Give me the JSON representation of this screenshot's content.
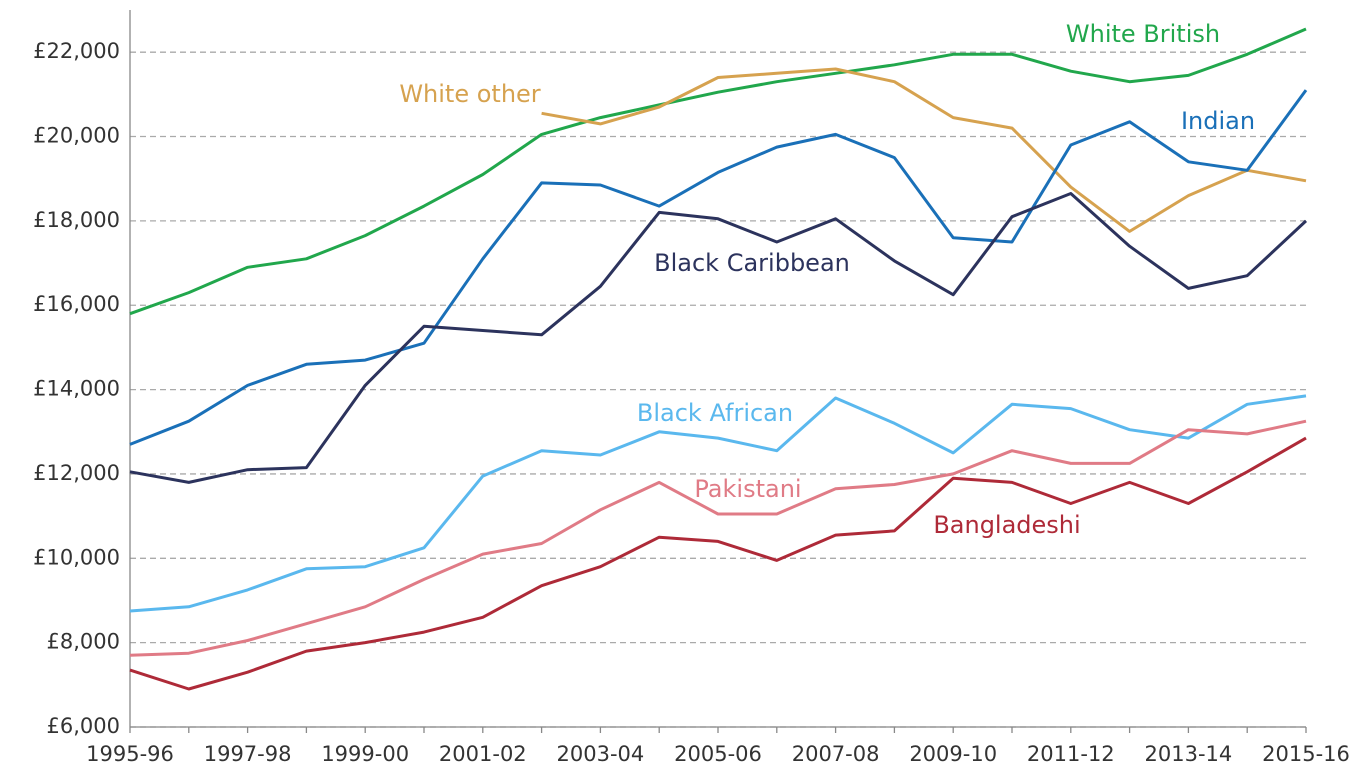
{
  "chart_data": {
    "type": "line",
    "categories": [
      "1995-96",
      null,
      "1997-98",
      null,
      "1999-00",
      null,
      "2001-02",
      null,
      "2003-04",
      null,
      "2005-06",
      null,
      "2007-08",
      null,
      "2009-10",
      null,
      "2011-12",
      null,
      "2013-14",
      null,
      "2015-16"
    ],
    "series": [
      {
        "name": "White British",
        "color": "#21a74c",
        "values": [
          15800,
          16300,
          16900,
          17100,
          17650,
          18350,
          19100,
          20050,
          20450,
          20750,
          21050,
          21300,
          21500,
          21700,
          21950,
          21950,
          21550,
          21300,
          21450,
          21950,
          22550
        ]
      },
      {
        "name": "White other",
        "color": "#d6a24f",
        "values": [
          null,
          null,
          null,
          null,
          null,
          null,
          null,
          20550,
          20300,
          20700,
          21400,
          21500,
          21600,
          21300,
          20450,
          20200,
          18800,
          17750,
          18600,
          19200,
          18950
        ]
      },
      {
        "name": "Indian",
        "color": "#1a70b8",
        "values": [
          12700,
          13250,
          14100,
          14600,
          14700,
          15100,
          17100,
          18900,
          18850,
          18350,
          19150,
          19750,
          20050,
          19500,
          17600,
          17500,
          19800,
          20350,
          19400,
          19200,
          21100
        ]
      },
      {
        "name": "Black Caribbean",
        "color": "#2c335d",
        "values": [
          12050,
          11800,
          12100,
          12150,
          14100,
          15500,
          15400,
          15300,
          16450,
          18200,
          18050,
          17500,
          18050,
          17050,
          16250,
          18100,
          18650,
          17400,
          16400,
          16700,
          18000
        ]
      },
      {
        "name": "Black African",
        "color": "#5ab8ee",
        "values": [
          8750,
          8850,
          9250,
          9750,
          9800,
          10250,
          11950,
          12550,
          12450,
          13000,
          12850,
          12550,
          13800,
          13200,
          12500,
          13650,
          13550,
          13050,
          12850,
          13650,
          13850
        ]
      },
      {
        "name": "Pakistani",
        "color": "#e07b86",
        "values": [
          7700,
          7750,
          8050,
          8450,
          8850,
          9500,
          10100,
          10350,
          11150,
          11800,
          11050,
          11050,
          11650,
          11750,
          12000,
          12550,
          12250,
          12250,
          13050,
          12950,
          13250
        ]
      },
      {
        "name": "Bangladeshi",
        "color": "#ae2a38",
        "values": [
          7350,
          6900,
          7300,
          7800,
          8000,
          8250,
          8600,
          9350,
          9800,
          10500,
          10400,
          9950,
          10550,
          10650,
          11900,
          11800,
          11300,
          11800,
          11300,
          12050,
          12850
        ]
      }
    ],
    "ylim": [
      6000,
      23000
    ],
    "yticks": [
      {
        "value": 6000,
        "label": "£6,000"
      },
      {
        "value": 8000,
        "label": "£8,000"
      },
      {
        "value": 10000,
        "label": "£10,000"
      },
      {
        "value": 12000,
        "label": "£12,000"
      },
      {
        "value": 14000,
        "label": "£14,000"
      },
      {
        "value": 16000,
        "label": "£16,000"
      },
      {
        "value": 18000,
        "label": "£18,000"
      },
      {
        "value": 20000,
        "label": "£20,000"
      },
      {
        "value": 22000,
        "label": "£22,000"
      }
    ],
    "grid": true
  }
}
